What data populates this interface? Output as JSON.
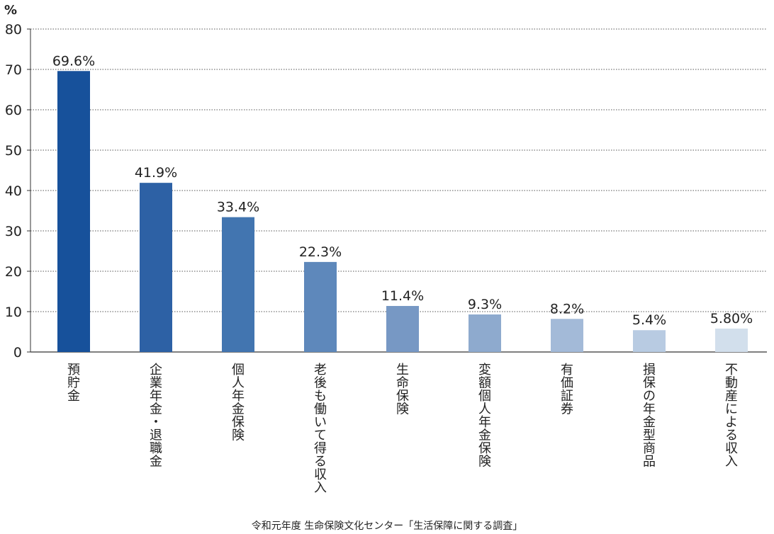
{
  "chart_data": {
    "type": "bar",
    "unit_label": "%",
    "categories": [
      "預貯金",
      "企業年金・退職金",
      "個人年金保険",
      "老後も働いて得る収入",
      "生命保険",
      "変額個人年金保険",
      "有価証券",
      "損保の年金型商品",
      "不動産による収入"
    ],
    "values": [
      69.6,
      41.9,
      33.4,
      22.3,
      11.4,
      9.3,
      8.2,
      5.4,
      5.8
    ],
    "data_labels": [
      "69.6%",
      "41.9%",
      "33.4%",
      "22.3%",
      "11.4%",
      "9.3%",
      "8.2%",
      "5.4%",
      "5.80%"
    ],
    "bar_colors": [
      "#17519b",
      "#2d61a5",
      "#4275b0",
      "#5e88bb",
      "#7798c4",
      "#8eaace",
      "#a3bad8",
      "#b8cbe2",
      "#d2dfec"
    ],
    "ylim": [
      0,
      80
    ],
    "yticks": [
      0,
      10,
      20,
      30,
      40,
      50,
      60,
      70,
      80
    ],
    "grid": true,
    "grid_color": "#555555",
    "source": "令和元年度 生命保険文化センター「生活保障に関する調査」"
  }
}
